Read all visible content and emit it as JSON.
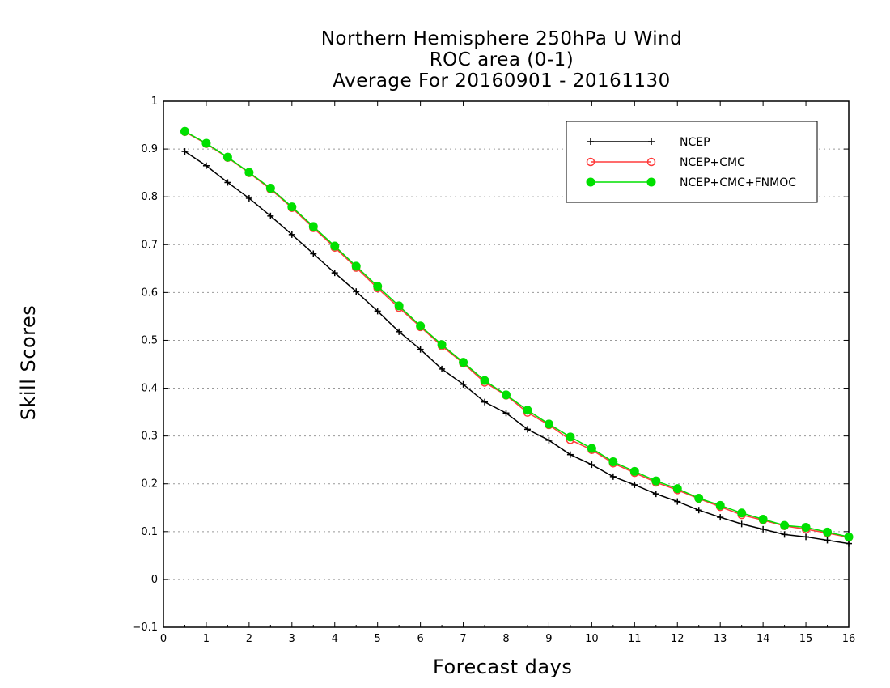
{
  "chart_data": {
    "type": "line",
    "title": [
      "Northern Hemisphere 250hPa U Wind",
      "ROC area (0-1)",
      "Average For 20160901 - 20161130"
    ],
    "xlabel": "Forecast days",
    "ylabel": "Skill Scores",
    "xlim": [
      0,
      16
    ],
    "ylim": [
      -0.1,
      1
    ],
    "xticks": [
      "0",
      "1",
      "2",
      "3",
      "4",
      "5",
      "6",
      "7",
      "8",
      "9",
      "10",
      "11",
      "12",
      "13",
      "14",
      "15",
      "16"
    ],
    "yticks": [
      "−0.1",
      "0",
      "0.1",
      "0.2",
      "0.3",
      "0.4",
      "0.5",
      "0.6",
      "0.7",
      "0.8",
      "0.9",
      "1"
    ],
    "grid": "horizontal dotted",
    "legend_position": "top-right",
    "x": [
      0.5,
      1,
      1.5,
      2,
      2.5,
      3,
      3.5,
      4,
      4.5,
      5,
      5.5,
      6,
      6.5,
      7,
      7.5,
      8,
      8.5,
      9,
      9.5,
      10,
      10.5,
      11,
      11.5,
      12,
      12.5,
      13,
      13.5,
      14,
      14.5,
      15,
      15.5,
      16
    ],
    "series": [
      {
        "name": "NCEP",
        "color": "#000000",
        "marker": "plus",
        "values": [
          0.895,
          0.865,
          0.83,
          0.797,
          0.76,
          0.721,
          0.681,
          0.641,
          0.602,
          0.561,
          0.518,
          0.481,
          0.44,
          0.408,
          0.371,
          0.348,
          0.314,
          0.291,
          0.261,
          0.24,
          0.215,
          0.198,
          0.179,
          0.163,
          0.145,
          0.13,
          0.116,
          0.105,
          0.094,
          0.089,
          0.082,
          0.075
        ]
      },
      {
        "name": "NCEP+CMC",
        "color": "#ff3b3b",
        "marker": "open-circle",
        "values": [
          0.936,
          0.911,
          0.882,
          0.85,
          0.816,
          0.777,
          0.735,
          0.694,
          0.652,
          0.609,
          0.568,
          0.528,
          0.488,
          0.452,
          0.412,
          0.385,
          0.349,
          0.323,
          0.292,
          0.271,
          0.243,
          0.223,
          0.203,
          0.187,
          0.169,
          0.152,
          0.135,
          0.124,
          0.112,
          0.105,
          0.097,
          0.088
        ]
      },
      {
        "name": "NCEP+CMC+FNMOC",
        "color": "#00e000",
        "marker": "filled-circle",
        "values": [
          0.937,
          0.912,
          0.883,
          0.851,
          0.818,
          0.779,
          0.738,
          0.697,
          0.655,
          0.613,
          0.572,
          0.53,
          0.491,
          0.454,
          0.416,
          0.386,
          0.354,
          0.325,
          0.298,
          0.274,
          0.246,
          0.226,
          0.206,
          0.19,
          0.17,
          0.155,
          0.139,
          0.126,
          0.113,
          0.109,
          0.099,
          0.089
        ]
      }
    ]
  }
}
